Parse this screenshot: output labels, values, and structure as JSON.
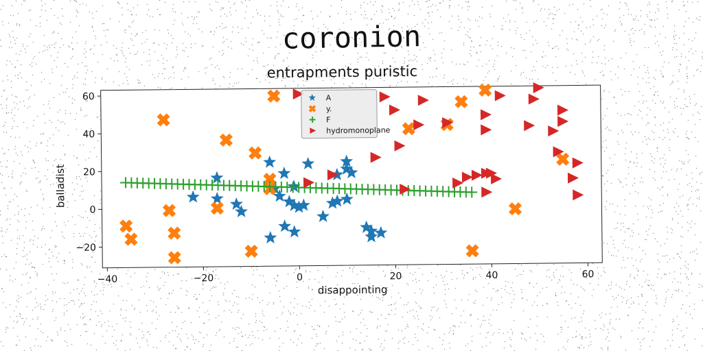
{
  "figure": {
    "suptitle": "coronion"
  },
  "chart_data": {
    "type": "scatter",
    "title": "entrapments puristic",
    "xlabel": "disappointing",
    "ylabel": "balladist",
    "xlim": [
      -41,
      63
    ],
    "ylim": [
      -31,
      63
    ],
    "xticks": [
      -40,
      -20,
      0,
      20,
      40,
      60
    ],
    "yticks": [
      -20,
      0,
      20,
      40,
      60
    ],
    "grid": false,
    "legend_position": "top-center",
    "series": [
      {
        "name": "A",
        "marker": "star",
        "color": "#1f77b4",
        "points": [
          [
            -22,
            6
          ],
          [
            -17,
            16
          ],
          [
            -17,
            5
          ],
          [
            -13,
            2
          ],
          [
            -12,
            -2
          ],
          [
            -6,
            24
          ],
          [
            -6,
            -16
          ],
          [
            -5,
            10
          ],
          [
            -4,
            6
          ],
          [
            -3,
            18
          ],
          [
            -3,
            -10
          ],
          [
            -1,
            -13
          ],
          [
            -1,
            1
          ],
          [
            -1,
            11
          ],
          [
            0,
            0
          ],
          [
            1,
            1
          ],
          [
            2,
            23
          ],
          [
            5,
            -5
          ],
          [
            7,
            2
          ],
          [
            8,
            3
          ],
          [
            8,
            17
          ],
          [
            10,
            4
          ],
          [
            10,
            20
          ],
          [
            10,
            24
          ],
          [
            11,
            18
          ],
          [
            14,
            -11
          ],
          [
            15,
            -13
          ],
          [
            15,
            -16
          ],
          [
            17,
            -14
          ],
          [
            -2,
            3
          ]
        ]
      },
      {
        "name": "y.",
        "marker": "x",
        "color": "#ff7f0e",
        "points": [
          [
            -36,
            -9
          ],
          [
            -35,
            -16
          ],
          [
            -28,
            47
          ],
          [
            -27,
            -1
          ],
          [
            -26,
            -13
          ],
          [
            -26,
            -26
          ],
          [
            -17,
            0
          ],
          [
            -15,
            36
          ],
          [
            -10,
            -23
          ],
          [
            -9,
            29
          ],
          [
            -6,
            10
          ],
          [
            -5,
            59
          ],
          [
            -6,
            15
          ],
          [
            23,
            41
          ],
          [
            31,
            43
          ],
          [
            34,
            55
          ],
          [
            36,
            -24
          ],
          [
            39,
            61
          ],
          [
            45,
            -2
          ],
          [
            55,
            24
          ]
        ]
      },
      {
        "name": "F",
        "marker": "plus",
        "color": "#2ca02c",
        "x_start": -36,
        "x_end": 36,
        "y_start": 14,
        "y_end": 7,
        "n_points": 61
      },
      {
        "name": "hydromonoplane",
        "marker": "triangle-right",
        "color": "#d62728",
        "points": [
          [
            0,
            60
          ],
          [
            2,
            13
          ],
          [
            7,
            17
          ],
          [
            16,
            26
          ],
          [
            18,
            58
          ],
          [
            20,
            51
          ],
          [
            21,
            32
          ],
          [
            22,
            9
          ],
          [
            25,
            43
          ],
          [
            26,
            56
          ],
          [
            31,
            44
          ],
          [
            33,
            12
          ],
          [
            35,
            15
          ],
          [
            37,
            16
          ],
          [
            39,
            17
          ],
          [
            39,
            7
          ],
          [
            39,
            48
          ],
          [
            39,
            40
          ],
          [
            40,
            17
          ],
          [
            41,
            14
          ],
          [
            42,
            58
          ],
          [
            48,
            42
          ],
          [
            49,
            56
          ],
          [
            50,
            62
          ],
          [
            53,
            39
          ],
          [
            54,
            28
          ],
          [
            55,
            50
          ],
          [
            55,
            44
          ],
          [
            57,
            14
          ],
          [
            58,
            22
          ],
          [
            58,
            5
          ]
        ]
      }
    ]
  }
}
